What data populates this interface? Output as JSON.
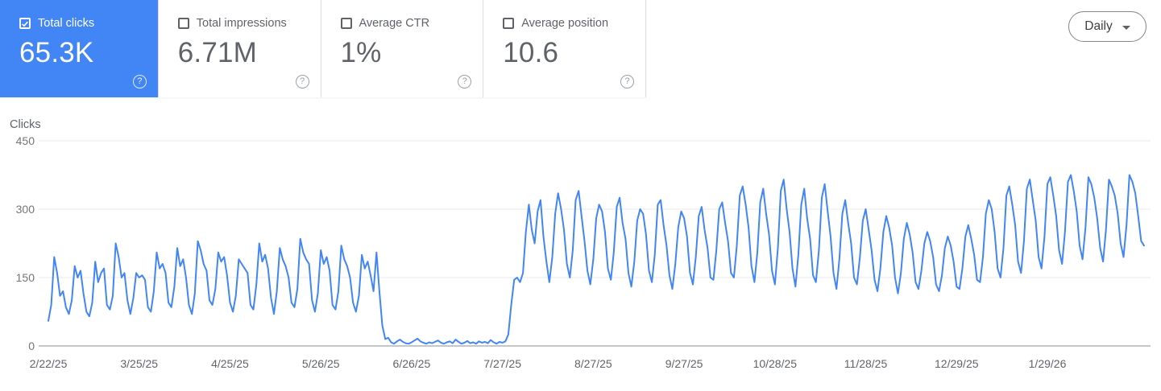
{
  "cards": [
    {
      "label": "Total clicks",
      "value": "65.3K",
      "selected": true,
      "checked": true
    },
    {
      "label": "Total impressions",
      "value": "6.71M",
      "selected": false,
      "checked": false
    },
    {
      "label": "Average CTR",
      "value": "1%",
      "selected": false,
      "checked": false
    },
    {
      "label": "Average position",
      "value": "10.6",
      "selected": false,
      "checked": false
    }
  ],
  "granularity": {
    "label": "Daily"
  },
  "appearance": {
    "accent_blue": "#4285f4",
    "selected_card_bg": "#4285f4",
    "card_text": "#5f6368",
    "y_axis_text": "#757575",
    "x_axis_text": "#5f6368",
    "grid_color": "#e8e8e8",
    "zero_axis_color": "#8a8f94",
    "divider": "#dadce0"
  },
  "chart_data": {
    "type": "line",
    "title": "Clicks",
    "axis_title": "Clicks",
    "series_name": "Total clicks",
    "line_color": "#4285f4",
    "ylim": [
      0,
      450
    ],
    "yticks": [
      0,
      150,
      300,
      450
    ],
    "grid": true,
    "legend_position": "none",
    "xticks": [
      {
        "day": 0,
        "label": "2/22/25"
      },
      {
        "day": 31,
        "label": "3/25/25"
      },
      {
        "day": 62,
        "label": "4/25/25"
      },
      {
        "day": 93,
        "label": "5/26/25"
      },
      {
        "day": 124,
        "label": "6/26/25"
      },
      {
        "day": 155,
        "label": "7/27/25"
      },
      {
        "day": 186,
        "label": "8/27/25"
      },
      {
        "day": 217,
        "label": "9/27/25"
      },
      {
        "day": 248,
        "label": "10/28/25"
      },
      {
        "day": 279,
        "label": "11/28/25"
      },
      {
        "day": 310,
        "label": "12/29/25"
      },
      {
        "day": 341,
        "label": "1/29/26"
      }
    ],
    "values": [
      55,
      90,
      195,
      160,
      110,
      120,
      85,
      70,
      100,
      175,
      150,
      165,
      115,
      75,
      65,
      95,
      185,
      140,
      160,
      170,
      90,
      80,
      110,
      225,
      195,
      150,
      160,
      100,
      70,
      105,
      160,
      150,
      155,
      145,
      85,
      75,
      120,
      205,
      170,
      180,
      160,
      95,
      85,
      130,
      215,
      175,
      190,
      150,
      90,
      70,
      115,
      230,
      210,
      180,
      165,
      100,
      90,
      125,
      205,
      185,
      195,
      155,
      95,
      75,
      110,
      190,
      180,
      170,
      160,
      90,
      80,
      135,
      225,
      185,
      200,
      170,
      105,
      70,
      120,
      215,
      190,
      175,
      150,
      95,
      85,
      125,
      235,
      205,
      190,
      180,
      100,
      75,
      115,
      210,
      180,
      195,
      165,
      90,
      80,
      120,
      220,
      190,
      175,
      150,
      95,
      75,
      110,
      200,
      170,
      185,
      155,
      120,
      205,
      120,
      45,
      15,
      18,
      8,
      5,
      10,
      14,
      9,
      6,
      5,
      8,
      12,
      16,
      10,
      7,
      5,
      8,
      6,
      9,
      12,
      7,
      5,
      8,
      10,
      6,
      14,
      9,
      5,
      7,
      11,
      6,
      8,
      5,
      10,
      7,
      9,
      6,
      13,
      8,
      5,
      9,
      7,
      10,
      25,
      90,
      145,
      150,
      140,
      160,
      250,
      310,
      255,
      225,
      295,
      320,
      240,
      185,
      140,
      195,
      290,
      335,
      300,
      255,
      180,
      150,
      210,
      320,
      340,
      285,
      230,
      165,
      135,
      190,
      280,
      310,
      295,
      250,
      170,
      145,
      205,
      305,
      325,
      270,
      235,
      160,
      130,
      185,
      275,
      300,
      290,
      245,
      165,
      140,
      200,
      310,
      320,
      265,
      220,
      155,
      125,
      180,
      260,
      295,
      280,
      240,
      160,
      135,
      195,
      285,
      305,
      255,
      215,
      150,
      145,
      210,
      300,
      315,
      270,
      230,
      160,
      150,
      220,
      330,
      350,
      310,
      260,
      175,
      140,
      205,
      315,
      345,
      290,
      245,
      165,
      135,
      215,
      340,
      365,
      300,
      250,
      170,
      130,
      200,
      310,
      345,
      280,
      235,
      155,
      140,
      210,
      325,
      355,
      295,
      240,
      160,
      125,
      190,
      290,
      320,
      270,
      225,
      150,
      135,
      195,
      275,
      300,
      255,
      210,
      145,
      120,
      170,
      250,
      285,
      260,
      220,
      150,
      115,
      160,
      235,
      270,
      245,
      205,
      140,
      125,
      165,
      225,
      250,
      230,
      195,
      135,
      120,
      155,
      215,
      240,
      220,
      185,
      130,
      125,
      170,
      240,
      265,
      235,
      200,
      145,
      140,
      195,
      290,
      320,
      300,
      250,
      170,
      150,
      215,
      330,
      350,
      310,
      265,
      185,
      160,
      230,
      345,
      365,
      320,
      275,
      195,
      170,
      240,
      355,
      370,
      330,
      285,
      210,
      180,
      250,
      360,
      375,
      340,
      295,
      220,
      190,
      260,
      370,
      355,
      325,
      280,
      215,
      185,
      255,
      365,
      350,
      330,
      290,
      225,
      195,
      265,
      375,
      360,
      335,
      285,
      230,
      220
    ]
  }
}
